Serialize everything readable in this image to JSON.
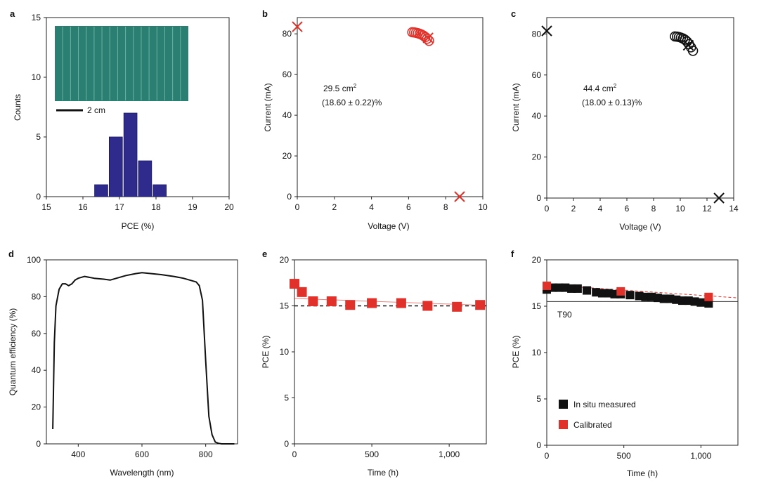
{
  "colors": {
    "red": "#e0322a",
    "black": "#111111",
    "hist_fill": "#2e2b8c",
    "inset": "#2a7f72"
  },
  "chart_data": [
    {
      "panel": "a",
      "type": "bar",
      "xlabel": "PCE (%)",
      "ylabel": "Counts",
      "xlim": [
        15,
        20
      ],
      "ylim": [
        0,
        15
      ],
      "xticks": [
        15,
        16,
        17,
        18,
        19,
        20
      ],
      "yticks": [
        0,
        5,
        10,
        15
      ],
      "bin_width": 0.4,
      "bins": [
        16.5,
        16.9,
        17.3,
        17.7,
        18.1,
        18.5
      ],
      "values": [
        1,
        5,
        7,
        3,
        1,
        0
      ],
      "inset_scale_label": "2 cm"
    },
    {
      "panel": "b",
      "type": "scatter",
      "xlabel": "Voltage (V)",
      "ylabel": "Current (mA)",
      "xlim": [
        0,
        10
      ],
      "ylim": [
        0,
        88
      ],
      "xticks": [
        0,
        2,
        4,
        6,
        8,
        10
      ],
      "yticks": [
        0,
        20,
        40,
        60,
        80
      ],
      "annotation_area": "29.5 cm",
      "annotation_pce": "(18.60 ± 0.22)%",
      "crosses": [
        [
          0,
          83.5
        ],
        [
          8.75,
          0
        ],
        [
          7.05,
          78
        ]
      ],
      "circles": [
        [
          6.2,
          80.8
        ],
        [
          6.3,
          80.7
        ],
        [
          6.4,
          80.5
        ],
        [
          6.5,
          80.3
        ],
        [
          6.6,
          80.0
        ],
        [
          6.7,
          79.6
        ],
        [
          6.8,
          79.1
        ],
        [
          6.9,
          78.4
        ],
        [
          7.0,
          77.6
        ],
        [
          7.1,
          76.6
        ]
      ]
    },
    {
      "panel": "c",
      "type": "scatter",
      "xlabel": "Voltage (V)",
      "ylabel": "Current (mA)",
      "xlim": [
        0,
        14
      ],
      "ylim": [
        0,
        88
      ],
      "xticks": [
        0,
        2,
        4,
        6,
        8,
        10,
        12,
        14
      ],
      "yticks": [
        0,
        20,
        40,
        60,
        80
      ],
      "annotation_area": "44.4 cm",
      "annotation_pce": "(18.00 ± 0.13)%",
      "crosses": [
        [
          0,
          81.5
        ],
        [
          12.9,
          0
        ],
        [
          10.6,
          74.5
        ]
      ],
      "circles": [
        [
          9.6,
          78.8
        ],
        [
          9.75,
          78.7
        ],
        [
          9.9,
          78.5
        ],
        [
          10.05,
          78.2
        ],
        [
          10.2,
          77.8
        ],
        [
          10.35,
          77.2
        ],
        [
          10.5,
          76.3
        ],
        [
          10.65,
          75.0
        ],
        [
          10.8,
          73.5
        ],
        [
          10.95,
          71.8
        ]
      ]
    },
    {
      "panel": "d",
      "type": "line",
      "xlabel": "Wavelength (nm)",
      "ylabel": "Quantum efficiency (%)",
      "xlim": [
        300,
        900
      ],
      "ylim": [
        0,
        100
      ],
      "xticks": [
        400,
        600,
        800
      ],
      "yticks": [
        0,
        20,
        40,
        60,
        80,
        100
      ],
      "x": [
        320,
        325,
        330,
        340,
        350,
        360,
        370,
        380,
        390,
        400,
        420,
        450,
        480,
        500,
        520,
        550,
        580,
        600,
        630,
        660,
        700,
        730,
        750,
        770,
        780,
        790,
        800,
        810,
        820,
        830,
        840,
        850,
        870,
        890
      ],
      "y": [
        8,
        55,
        75,
        84,
        87,
        87,
        86,
        87,
        89,
        90,
        91,
        90,
        89.5,
        89,
        90,
        91.5,
        92.5,
        93,
        92.5,
        92,
        91,
        90,
        89,
        88,
        86,
        78,
        45,
        15,
        5,
        1,
        0.3,
        0,
        0,
        0
      ]
    },
    {
      "panel": "e",
      "type": "scatter",
      "xlabel": "Time (h)",
      "ylabel": "PCE (%)",
      "xlim": [
        0,
        1240
      ],
      "ylim": [
        0,
        20
      ],
      "xticks": [
        0,
        500,
        1000
      ],
      "xticklabels": [
        "0",
        "500",
        "1,000"
      ],
      "yticks": [
        0,
        5,
        10,
        15,
        20
      ],
      "series": [
        {
          "x": [
            0,
            48,
            120,
            240,
            360,
            500,
            690,
            860,
            1050,
            1200
          ],
          "y": [
            17.4,
            16.5,
            15.5,
            15.5,
            15.1,
            15.3,
            15.3,
            15.0,
            14.9,
            15.1
          ]
        }
      ],
      "ref_line_y": 15.0,
      "trend_line": [
        [
          0,
          15.8
        ],
        [
          1240,
          15.05
        ]
      ]
    },
    {
      "panel": "f",
      "type": "scatter",
      "xlabel": "Time (h)",
      "ylabel": "PCE (%)",
      "xlim": [
        0,
        1240
      ],
      "ylim": [
        0,
        20
      ],
      "xticks": [
        0,
        500,
        1000
      ],
      "xticklabels": [
        "0",
        "500",
        "1,000"
      ],
      "yticks": [
        0,
        5,
        10,
        15,
        20
      ],
      "ref_line_y": 15.5,
      "ref_label": "T90",
      "trend_line": [
        [
          0,
          17.3
        ],
        [
          1240,
          15.9
        ]
      ],
      "series": [
        {
          "name": "In situ measured",
          "x": [
            0,
            40,
            80,
            120,
            160,
            200,
            260,
            320,
            360,
            400,
            440,
            480,
            540,
            600,
            640,
            680,
            720,
            760,
            800,
            840,
            880,
            920,
            960,
            1000,
            1050
          ],
          "y": [
            16.8,
            17.0,
            17.0,
            17.0,
            16.9,
            16.9,
            16.7,
            16.5,
            16.4,
            16.4,
            16.3,
            16.3,
            16.2,
            16.1,
            16.0,
            16.0,
            15.9,
            15.8,
            15.8,
            15.7,
            15.6,
            15.6,
            15.5,
            15.4,
            15.3
          ]
        },
        {
          "name": "Calibrated",
          "x": [
            0,
            480,
            1050
          ],
          "y": [
            17.2,
            16.6,
            16.0
          ]
        }
      ]
    }
  ]
}
